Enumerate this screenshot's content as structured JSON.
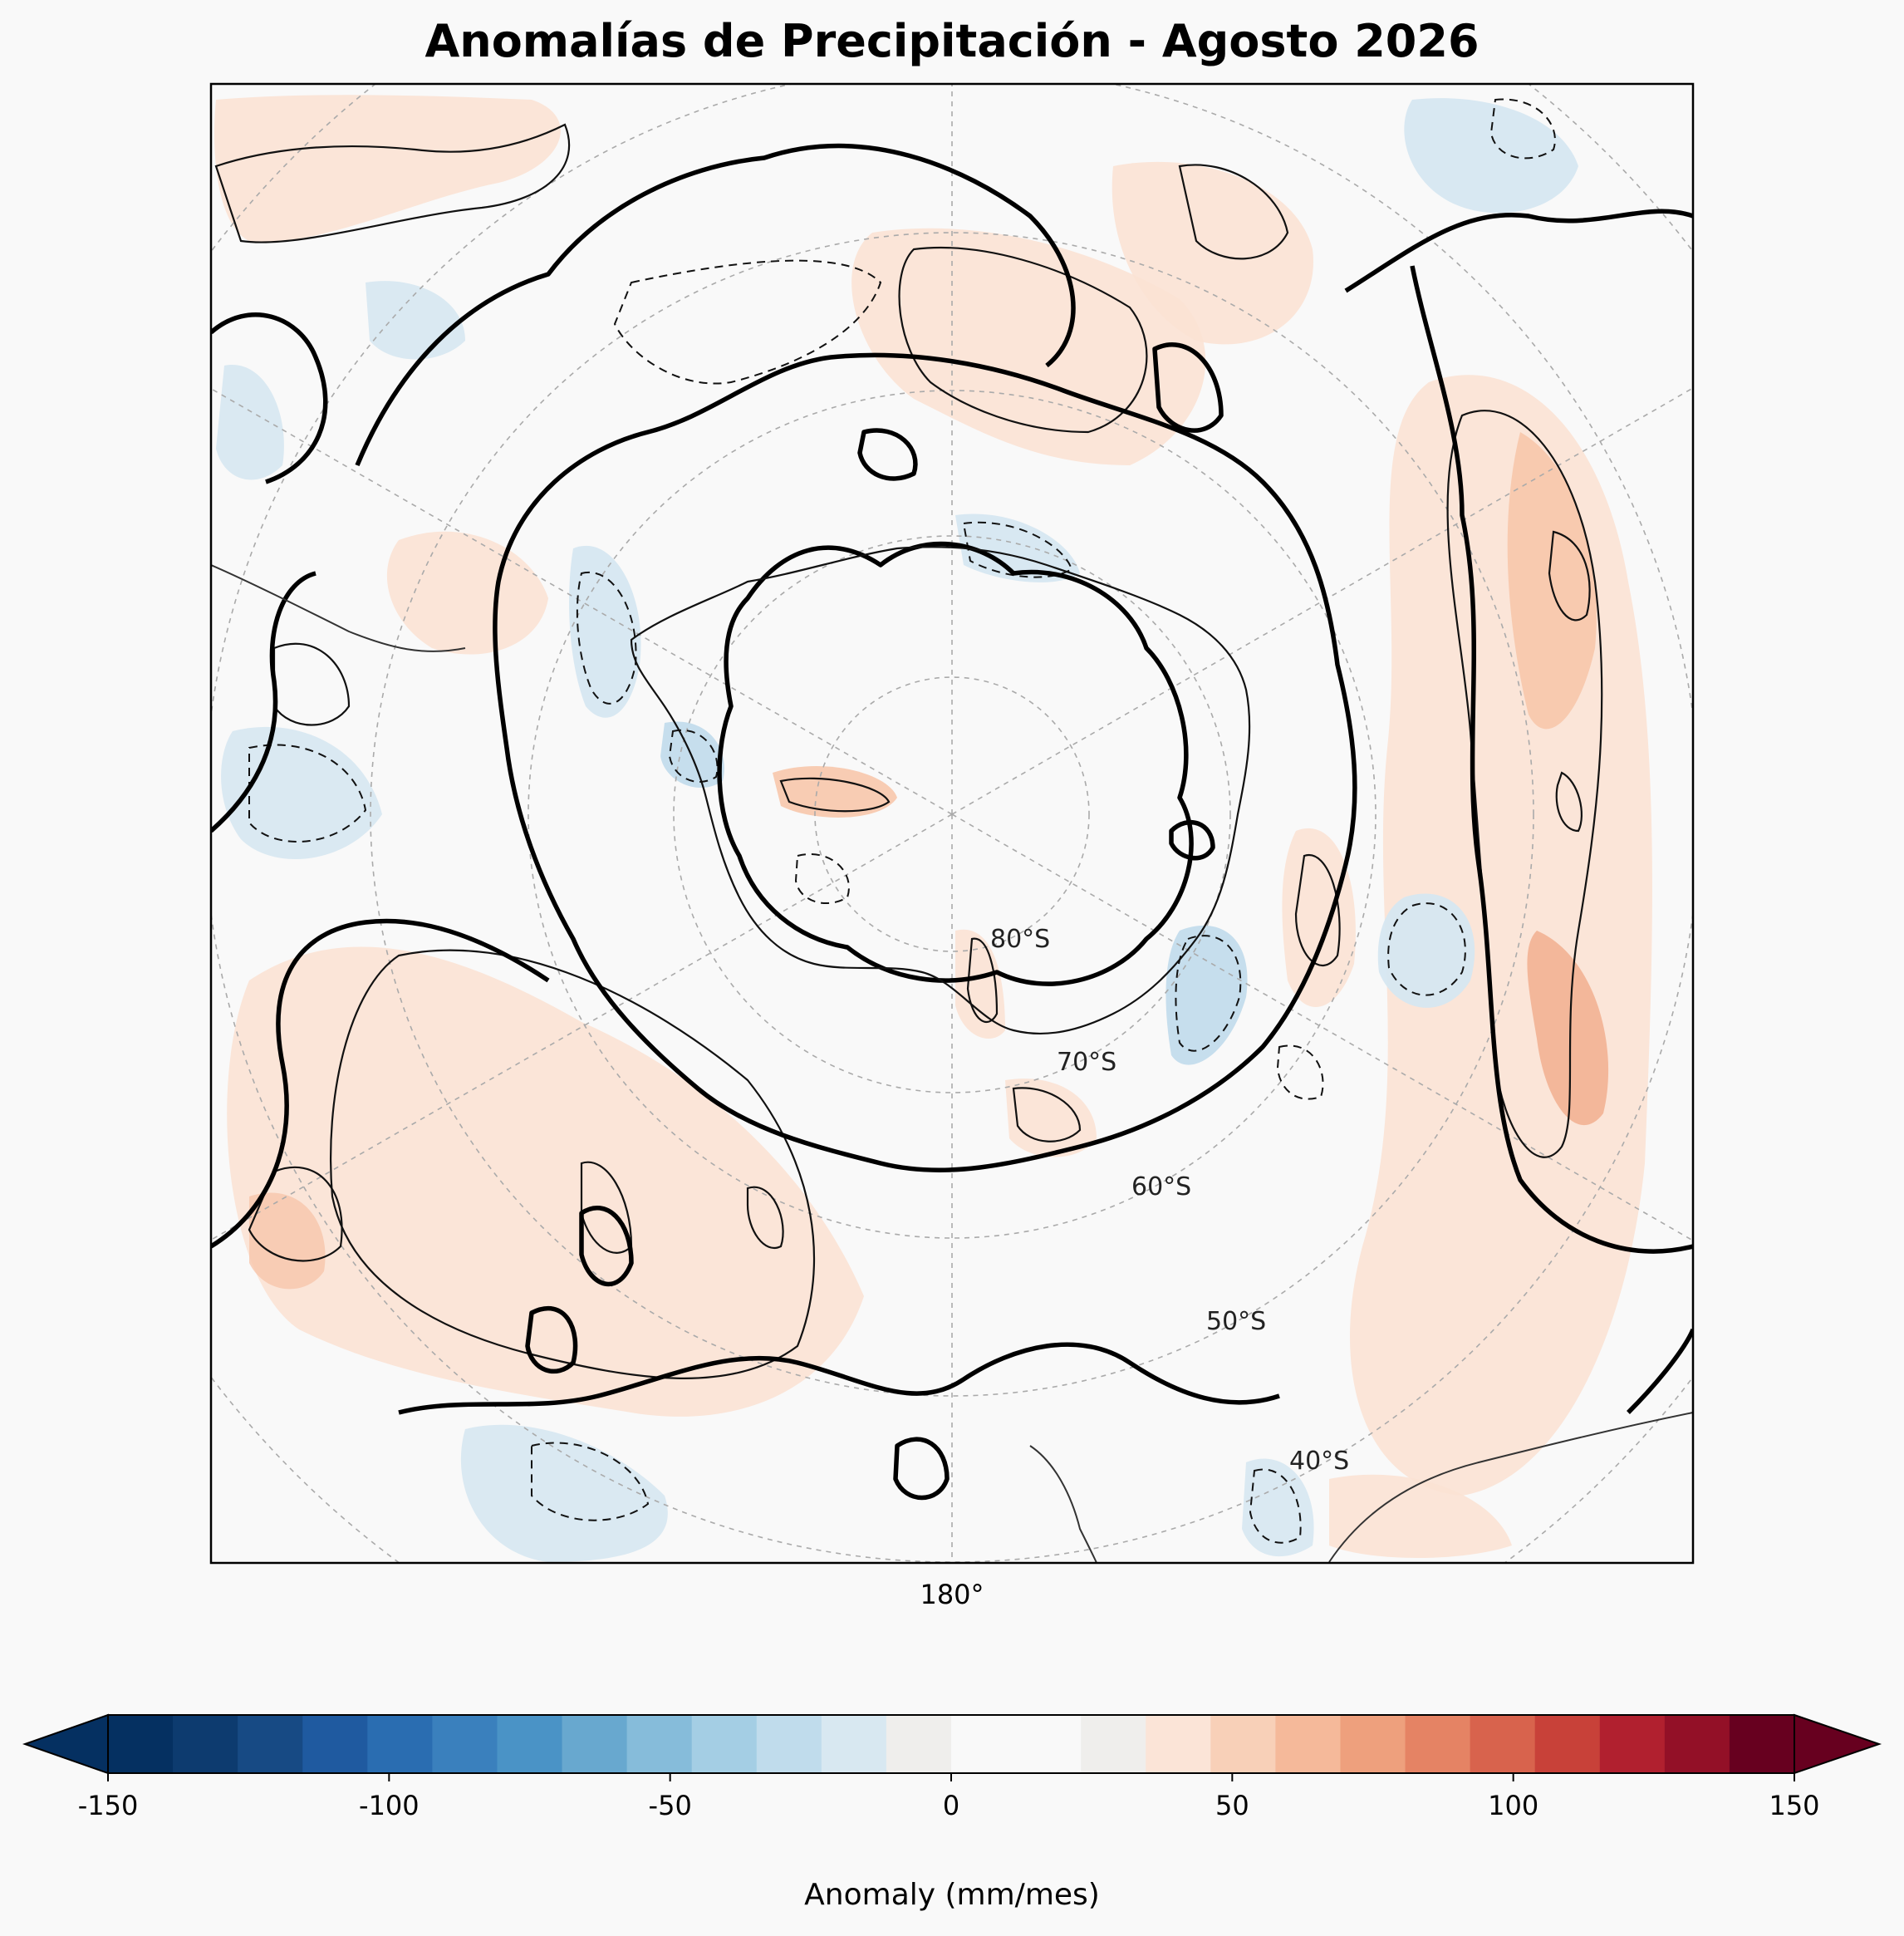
{
  "title": "Anomalías de Precipitación - Agosto 2026",
  "map": {
    "projection": "south-polar-stereographic",
    "meridian_label": "180°",
    "latitude_labels": [
      "80°S",
      "70°S",
      "60°S",
      "50°S",
      "40°S"
    ],
    "contour_styles": {
      "negative": "dashed",
      "positive": "solid",
      "zero": "bold"
    }
  },
  "colorbar": {
    "label": "Anomaly (mm/mes)",
    "ticks": [
      "-150",
      "-100",
      "-50",
      "0",
      "50",
      "100",
      "150"
    ],
    "tick_values": [
      -150,
      -100,
      -50,
      0,
      50,
      100,
      150
    ],
    "min": -150,
    "max": 150,
    "extend": "both",
    "colormap": "RdBu_r",
    "colors": [
      "#053061",
      "#0d3b6f",
      "#174a84",
      "#1f5aa0",
      "#2a6db1",
      "#3a80bd",
      "#4a93c6",
      "#68a8cf",
      "#86bcda",
      "#a4cee4",
      "#c0dcec",
      "#d8e8f1",
      "#efeeec",
      "#f9f9f9",
      "#f9f9f9",
      "#efeeec",
      "#fbe4d7",
      "#f8d0b8",
      "#f5b99a",
      "#eea07d",
      "#e58364",
      "#d8634d",
      "#c84139",
      "#b1202f",
      "#931027",
      "#67001f"
    ]
  }
}
